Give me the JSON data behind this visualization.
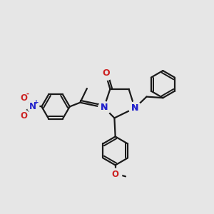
{
  "bg_color": "#e6e6e6",
  "bond_color": "#1a1a1a",
  "N_color": "#2222cc",
  "O_color": "#cc2222",
  "lw": 1.6,
  "fs": 8.5,
  "xlim": [
    0,
    10
  ],
  "ylim": [
    0,
    10
  ]
}
